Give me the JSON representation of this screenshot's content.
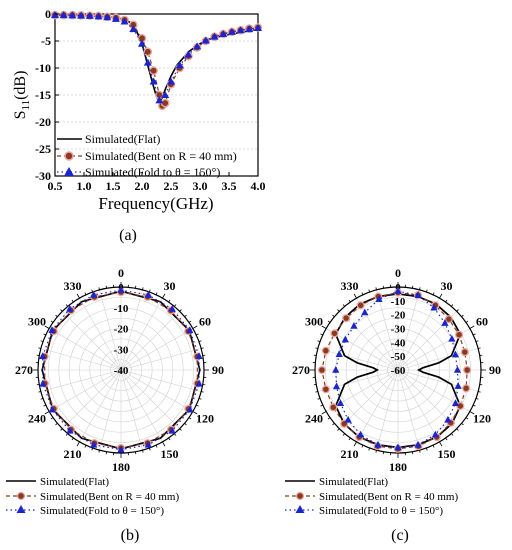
{
  "colors": {
    "flat": "#000000",
    "bent": "#8b3a1c",
    "bent_edge": "#e8a6a6",
    "fold": "#1a25cc",
    "grid": "#d0d0d0"
  },
  "captions": {
    "a": "(a)",
    "b": "(b)",
    "c": "(c)"
  },
  "chart_data": [
    {
      "id": "a",
      "type": "line",
      "xlabel": "Frequency(GHz)",
      "ylabel": "S",
      "ylabel_sub": "11",
      "ylabel_unit": "(dB)",
      "xlim": [
        0.5,
        4.0
      ],
      "ylim": [
        -30,
        0
      ],
      "xticks": [
        "0.5",
        "1.0",
        "1.5",
        "2.0",
        "2.5",
        "3.0",
        "3.5",
        "4.0"
      ],
      "yticks": [
        "0",
        "-5",
        "-10",
        "-15",
        "-20",
        "-25",
        "-30"
      ],
      "legend": [
        "Simulated(Flat)",
        "Simulated(Bent on R = 40 mm)",
        "Simulated(Fold to θ = 150°)"
      ],
      "series": [
        {
          "name": "Simulated(Flat)",
          "x": [
            0.5,
            1.0,
            1.5,
            1.7,
            1.8,
            1.9,
            2.0,
            2.1,
            2.2,
            2.25,
            2.3,
            2.35,
            2.4,
            2.5,
            2.6,
            2.8,
            3.0,
            3.2,
            3.5,
            3.8,
            4.0
          ],
          "y": [
            -0.2,
            -0.3,
            -0.6,
            -1.0,
            -1.6,
            -3.0,
            -5.5,
            -9.5,
            -13.5,
            -15.3,
            -16.2,
            -15.5,
            -14.0,
            -11.5,
            -9.5,
            -7.0,
            -5.5,
            -4.5,
            -3.8,
            -3.2,
            -2.8
          ]
        },
        {
          "name": "Simulated(Bent on R = 40 mm)",
          "x": [
            0.5,
            0.65,
            0.8,
            0.95,
            1.1,
            1.25,
            1.4,
            1.55,
            1.7,
            1.85,
            2.0,
            2.1,
            2.2,
            2.3,
            2.35,
            2.4,
            2.5,
            2.65,
            2.8,
            2.95,
            3.1,
            3.25,
            3.4,
            3.55,
            3.7,
            3.85,
            4.0
          ],
          "y": [
            -0.2,
            -0.2,
            -0.2,
            -0.25,
            -0.3,
            -0.35,
            -0.5,
            -0.7,
            -1.1,
            -2.0,
            -4.5,
            -7.0,
            -10.5,
            -15.0,
            -17.0,
            -16.5,
            -13.0,
            -10.0,
            -7.8,
            -6.2,
            -5.0,
            -4.2,
            -3.7,
            -3.3,
            -3.0,
            -2.7,
            -2.5
          ]
        },
        {
          "name": "Simulated(Fold to θ = 150°)",
          "x": [
            0.5,
            0.65,
            0.8,
            0.95,
            1.1,
            1.25,
            1.4,
            1.55,
            1.7,
            1.85,
            2.0,
            2.1,
            2.2,
            2.3,
            2.4,
            2.5,
            2.65,
            2.8,
            2.95,
            3.1,
            3.25,
            3.4,
            3.55,
            3.7,
            3.85,
            4.0
          ],
          "y": [
            -0.2,
            -0.2,
            -0.25,
            -0.3,
            -0.35,
            -0.45,
            -0.6,
            -0.9,
            -1.4,
            -2.8,
            -5.5,
            -9.0,
            -12.5,
            -16.0,
            -15.0,
            -12.5,
            -9.5,
            -7.5,
            -6.0,
            -4.9,
            -4.2,
            -3.7,
            -3.3,
            -3.0,
            -2.8,
            -2.6
          ]
        }
      ]
    },
    {
      "id": "b",
      "type": "polar",
      "rlim": [
        -40,
        0
      ],
      "rticks": [
        "0",
        "-10",
        "-20",
        "-30",
        "-40"
      ],
      "angle_ticks": [
        "0",
        "30",
        "60",
        "90",
        "120",
        "150",
        "180",
        "210",
        "240",
        "270",
        "300",
        "330"
      ],
      "legend": [
        "Simulated(Flat)",
        "Simulated(Bent on R = 40 mm)",
        "Simulated(Fold to θ = 150°)"
      ],
      "series": [
        {
          "name": "Simulated(Flat)",
          "theta": [
            0,
            30,
            60,
            90,
            120,
            150,
            180,
            210,
            240,
            270,
            300,
            330,
            360
          ],
          "r": [
            -2,
            -2,
            -2,
            -2,
            -2,
            -2,
            -2,
            -2,
            -2,
            -2,
            -2,
            -2,
            -2
          ]
        },
        {
          "name": "Simulated(Bent on R = 40 mm)",
          "theta": [
            0,
            20,
            40,
            60,
            80,
            100,
            120,
            140,
            160,
            180,
            200,
            220,
            240,
            260,
            280,
            300,
            320,
            340,
            360
          ],
          "r": [
            -2.5,
            -2.5,
            -2.6,
            -2.6,
            -2.7,
            -2.6,
            -2.5,
            -2.5,
            -2.5,
            -2.4,
            -2.5,
            -2.5,
            -2.6,
            -2.7,
            -2.6,
            -2.6,
            -2.5,
            -2.5,
            -2.5
          ]
        },
        {
          "name": "Simulated(Fold to θ = 150°)",
          "theta": [
            0,
            20,
            40,
            60,
            80,
            100,
            120,
            140,
            160,
            180,
            200,
            220,
            240,
            260,
            280,
            300,
            320,
            340,
            360
          ],
          "r": [
            -1.5,
            -1.5,
            -1.6,
            -1.7,
            -1.8,
            -1.8,
            -1.7,
            -1.7,
            -1.6,
            -1.6,
            -1.6,
            -1.7,
            -1.8,
            -1.8,
            -1.7,
            -1.6,
            -1.6,
            -1.5,
            -1.5
          ]
        }
      ]
    },
    {
      "id": "c",
      "type": "polar",
      "rlim": [
        -60,
        0
      ],
      "rticks": [
        "0",
        "-10",
        "-20",
        "-30",
        "-40",
        "-50",
        "-60"
      ],
      "angle_ticks": [
        "0",
        "30",
        "60",
        "90",
        "120",
        "150",
        "180",
        "210",
        "240",
        "270",
        "300",
        "330"
      ],
      "legend": [
        "Simulated(Flat)",
        "Simulated(Bent on R = 40 mm)",
        "Simulated(Fold to θ = 150°)"
      ],
      "series": [
        {
          "name": "Simulated(Flat)",
          "theta": [
            0,
            15,
            30,
            45,
            60,
            75,
            80,
            85,
            90,
            95,
            100,
            105,
            120,
            135,
            150,
            165,
            180,
            195,
            210,
            225,
            240,
            255,
            260,
            265,
            270,
            275,
            280,
            285,
            300,
            315,
            330,
            345,
            360
          ],
          "r": [
            -5,
            -5,
            -5,
            -6,
            -8,
            -20,
            -30,
            -42,
            -45,
            -42,
            -30,
            -20,
            -8,
            -5,
            -4,
            -4,
            -4,
            -4,
            -4,
            -5,
            -8,
            -20,
            -30,
            -42,
            -45,
            -42,
            -30,
            -20,
            -8,
            -6,
            -5,
            -5,
            -5
          ]
        },
        {
          "name": "Simulated(Bent on R = 40 mm)",
          "theta": [
            0,
            15,
            30,
            45,
            60,
            75,
            90,
            105,
            120,
            135,
            150,
            165,
            180,
            195,
            210,
            225,
            240,
            255,
            270,
            285,
            300,
            315,
            330,
            345,
            360
          ],
          "r": [
            -4,
            -4,
            -6,
            -8,
            -9,
            -10,
            -10,
            -9,
            -8,
            -6,
            -4,
            -3,
            -3,
            -3,
            -4,
            -5,
            -6,
            -6,
            -5,
            -6,
            -7,
            -7,
            -6,
            -5,
            -4
          ]
        },
        {
          "name": "Simulated(Fold to θ = 150°)",
          "theta": [
            0,
            15,
            30,
            45,
            60,
            75,
            90,
            105,
            120,
            135,
            150,
            165,
            180,
            195,
            210,
            225,
            240,
            255,
            270,
            285,
            300,
            315,
            330,
            345,
            360
          ],
          "r": [
            -3,
            -4,
            -8,
            -12,
            -15,
            -17,
            -17,
            -15,
            -12,
            -9,
            -6,
            -4,
            -4,
            -4,
            -6,
            -9,
            -12,
            -14,
            -15,
            -16,
            -16,
            -15,
            -12,
            -7,
            -3
          ]
        }
      ]
    }
  ]
}
